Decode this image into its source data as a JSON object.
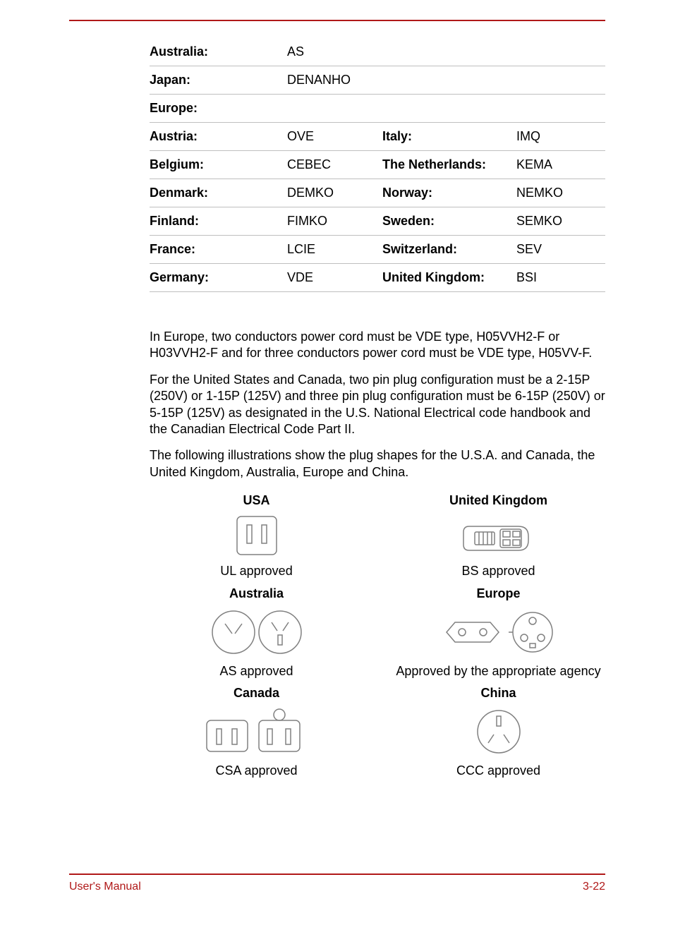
{
  "colors": {
    "accent": "#b01818",
    "rule": "#bfbfbf",
    "text": "#000000",
    "bg": "#ffffff",
    "plug_stroke": "#808080"
  },
  "table": {
    "rows": [
      {
        "l1": "Australia:",
        "v1": "AS",
        "l2": "",
        "v2": ""
      },
      {
        "l1": "Japan:",
        "v1": "DENANHO",
        "l2": "",
        "v2": ""
      },
      {
        "l1": "Europe:",
        "v1": "",
        "l2": "",
        "v2": ""
      },
      {
        "l1": "Austria:",
        "v1": "OVE",
        "l2": "Italy:",
        "v2": "IMQ"
      },
      {
        "l1": "Belgium:",
        "v1": "CEBEC",
        "l2": "The Netherlands:",
        "v2": "KEMA"
      },
      {
        "l1": "Denmark:",
        "v1": "DEMKO",
        "l2": "Norway:",
        "v2": "NEMKO"
      },
      {
        "l1": "Finland:",
        "v1": "FIMKO",
        "l2": "Sweden:",
        "v2": "SEMKO"
      },
      {
        "l1": "France:",
        "v1": "LCIE",
        "l2": "Switzerland:",
        "v2": "SEV"
      },
      {
        "l1": "Germany:",
        "v1": "VDE",
        "l2": "United Kingdom:",
        "v2": "BSI"
      }
    ]
  },
  "paragraphs": {
    "p1": "In Europe, two conductors power cord must be VDE type, H05VVH2-F or H03VVH2-F and for three conductors power cord must be VDE type, H05VV-F.",
    "p2": "For the United States and Canada, two pin plug configuration must be a 2-15P (250V) or 1-15P (125V) and three pin plug configuration must be 6-15P (250V) or 5-15P (125V) as designated in the U.S. National Electrical code handbook and the Canadian Electrical Code Part II.",
    "p3": "The following illustrations show the plug shapes for the U.S.A. and Canada, the United Kingdom, Australia, Europe and China."
  },
  "plugs": {
    "usa": {
      "title": "USA",
      "caption": "UL approved"
    },
    "uk": {
      "title": "United Kingdom",
      "caption": "BS approved"
    },
    "aus": {
      "title": "Australia",
      "caption": "AS approved"
    },
    "eu": {
      "title": "Europe",
      "caption": "Approved by the appropriate agency"
    },
    "can": {
      "title": "Canada",
      "caption": "CSA approved"
    },
    "china": {
      "title": "China",
      "caption": "CCC approved"
    }
  },
  "footer": {
    "left": "User's Manual",
    "right": "3-22"
  }
}
